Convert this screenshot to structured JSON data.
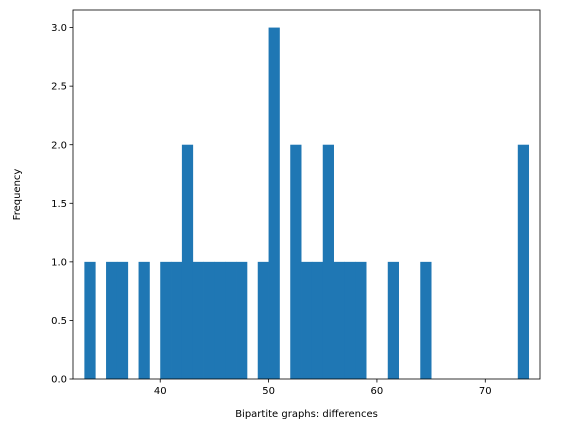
{
  "chart_data": {
    "type": "bar",
    "title": "",
    "xlabel": "Bipartite graphs: differences",
    "ylabel": "Frequency",
    "xlim": [
      31.95,
      75.05
    ],
    "ylim": [
      0,
      3.15
    ],
    "bin_width": 1.0,
    "bins": [
      {
        "x0": 33.0,
        "x1": 34.0,
        "count": 1
      },
      {
        "x0": 35.0,
        "x1": 36.0,
        "count": 1
      },
      {
        "x0": 36.0,
        "x1": 37.0,
        "count": 1
      },
      {
        "x0": 38.0,
        "x1": 39.0,
        "count": 1
      },
      {
        "x0": 40.0,
        "x1": 41.0,
        "count": 1
      },
      {
        "x0": 41.0,
        "x1": 42.0,
        "count": 1
      },
      {
        "x0": 42.0,
        "x1": 43.0,
        "count": 2
      },
      {
        "x0": 43.0,
        "x1": 44.0,
        "count": 1
      },
      {
        "x0": 44.0,
        "x1": 45.0,
        "count": 1
      },
      {
        "x0": 45.0,
        "x1": 46.0,
        "count": 1
      },
      {
        "x0": 46.0,
        "x1": 47.0,
        "count": 1
      },
      {
        "x0": 47.0,
        "x1": 48.0,
        "count": 1
      },
      {
        "x0": 49.0,
        "x1": 50.0,
        "count": 1
      },
      {
        "x0": 50.0,
        "x1": 51.0,
        "count": 3
      },
      {
        "x0": 52.0,
        "x1": 53.0,
        "count": 2
      },
      {
        "x0": 53.0,
        "x1": 54.0,
        "count": 1
      },
      {
        "x0": 54.0,
        "x1": 55.0,
        "count": 1
      },
      {
        "x0": 55.0,
        "x1": 56.0,
        "count": 2
      },
      {
        "x0": 56.0,
        "x1": 57.0,
        "count": 1
      },
      {
        "x0": 57.0,
        "x1": 58.0,
        "count": 1
      },
      {
        "x0": 58.0,
        "x1": 59.0,
        "count": 1
      },
      {
        "x0": 61.0,
        "x1": 62.0,
        "count": 1
      },
      {
        "x0": 64.0,
        "x1": 65.0,
        "count": 1
      },
      {
        "x0": 73.0,
        "x1": 74.0,
        "count": 2
      }
    ],
    "x_ticks": [
      40,
      50,
      60,
      70
    ],
    "x_tick_labels": [
      "40",
      "50",
      "60",
      "70"
    ],
    "y_ticks": [
      0.0,
      0.5,
      1.0,
      1.5,
      2.0,
      2.5,
      3.0
    ],
    "y_tick_labels": [
      "0.0",
      "0.5",
      "1.0",
      "1.5",
      "2.0",
      "2.5",
      "3.0"
    ],
    "bar_color": "#1f77b4",
    "grid": false,
    "legend": "none"
  }
}
